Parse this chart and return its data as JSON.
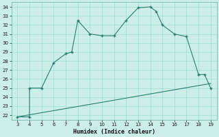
{
  "main_x": [
    3,
    4,
    4,
    5,
    6,
    7,
    7.5,
    8,
    9,
    10,
    11,
    12,
    13,
    14,
    14.5,
    15,
    16,
    17,
    18,
    18.5,
    19
  ],
  "main_y": [
    21.8,
    21.8,
    25.0,
    25.0,
    27.8,
    28.8,
    29.0,
    32.5,
    31.0,
    30.8,
    30.8,
    32.5,
    33.9,
    34.0,
    33.5,
    32.0,
    31.0,
    30.7,
    26.5,
    26.5,
    25.0
  ],
  "line_x": [
    3,
    19
  ],
  "line_y": [
    21.8,
    25.5
  ],
  "color": "#2d7a6e",
  "bg_color": "#cceee8",
  "grid_color": "#99ddd4",
  "xlabel": "Humidex (Indice chaleur)",
  "xlim": [
    2.5,
    19.5
  ],
  "ylim": [
    21.5,
    34.5
  ],
  "xticks": [
    3,
    4,
    5,
    6,
    7,
    8,
    9,
    10,
    11,
    12,
    13,
    14,
    15,
    16,
    17,
    18,
    19
  ],
  "yticks": [
    22,
    23,
    24,
    25,
    26,
    27,
    28,
    29,
    30,
    31,
    32,
    33,
    34
  ],
  "tick_fontsize": 5.0,
  "xlabel_fontsize": 6.0
}
